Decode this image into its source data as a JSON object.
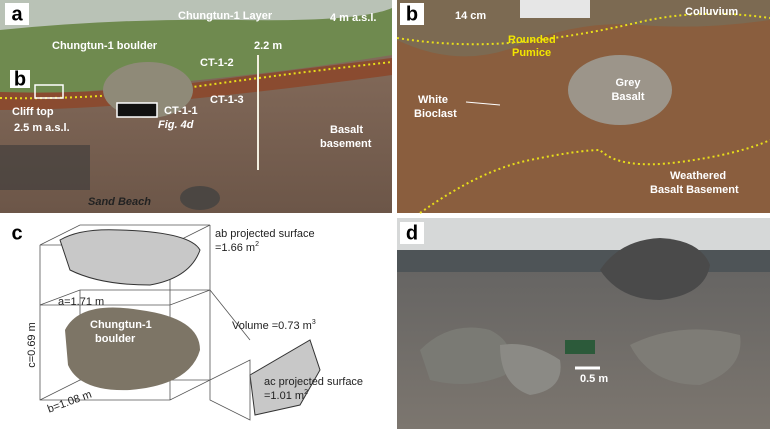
{
  "panel_a": {
    "letter": "a",
    "layer": "Chungtun-1 Layer",
    "elevation_top": "4 m a.s.l.",
    "boulder": "Chungtun-1 boulder",
    "height": "2.2 m",
    "samples": [
      "CT-1-2",
      "CT-1-3",
      "CT-1-1"
    ],
    "inset_letter": "b",
    "cliff_top": "Cliff top",
    "cliff_elevation": "2.5 m a.s.l.",
    "fig_ref": "Fig. 4d",
    "basement": [
      "Basalt",
      "basement"
    ],
    "beach": "Sand Beach"
  },
  "panel_b": {
    "letter": "b",
    "scale": "14 cm",
    "colluvium": "Colluvium",
    "pumice": [
      "Rounded",
      "Pumice"
    ],
    "basalt": [
      "Grey",
      "Basalt"
    ],
    "bioclast": [
      "White",
      "Bioclast"
    ],
    "basement": [
      "Weathered",
      "Basalt Basement"
    ]
  },
  "panel_c": {
    "letter": "c",
    "ab_surface": [
      "ab projected surface",
      "=1.66 m",
      "2"
    ],
    "a": "a=1.71 m",
    "boulder": [
      "Chungtun-1",
      "boulder"
    ],
    "volume": [
      "Volume =0.73 m",
      "3"
    ],
    "c": "c=0.69 m",
    "b": "b=1.08 m",
    "ac_surface": [
      "ac projected surface",
      "=1.01 m",
      "2"
    ]
  },
  "panel_d": {
    "letter": "d",
    "scale": "0.5 m"
  }
}
